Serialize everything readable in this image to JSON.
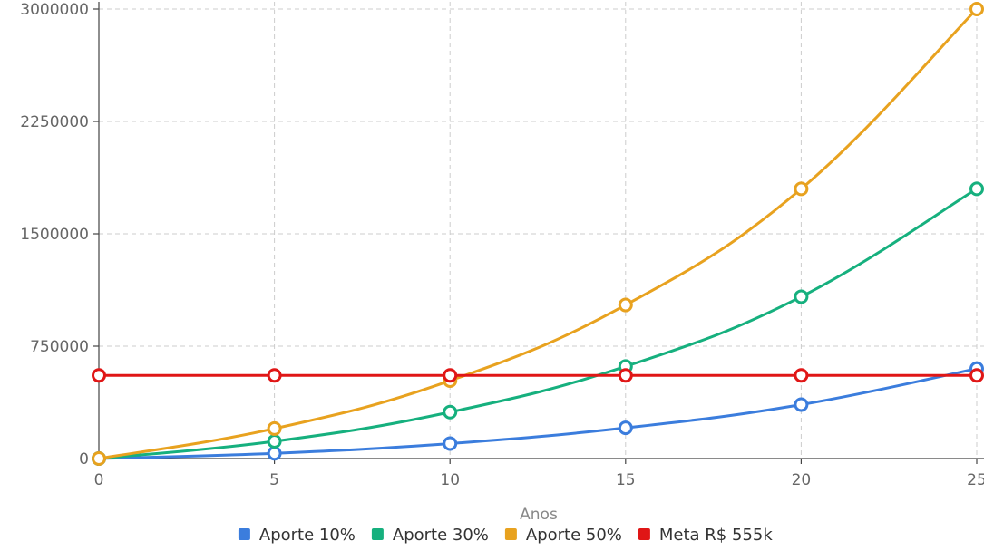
{
  "chart_data": {
    "type": "line",
    "title": "",
    "xlabel": "Anos",
    "ylabel": "",
    "x": [
      0,
      5,
      10,
      15,
      20,
      25
    ],
    "xticks": [
      "0",
      "5",
      "10",
      "15",
      "20",
      "25"
    ],
    "yticks": [
      "0",
      "750000",
      "1500000",
      "2250000",
      "3000000"
    ],
    "ylim": [
      0,
      3000000
    ],
    "xlim": [
      0,
      25
    ],
    "grid": true,
    "legend_position": "bottom",
    "series": [
      {
        "name": "Aporte 10%",
        "color": "#3b7ddd",
        "values": [
          0,
          35000,
          100000,
          205000,
          360000,
          600000
        ]
      },
      {
        "name": "Aporte 30%",
        "color": "#16b07e",
        "values": [
          0,
          115000,
          310000,
          615000,
          1080000,
          1800000
        ]
      },
      {
        "name": "Aporte 50%",
        "color": "#e8a21f",
        "values": [
          0,
          200000,
          520000,
          1025000,
          1800000,
          3000000
        ]
      },
      {
        "name": "Meta R$ 555k",
        "color": "#e01616",
        "values": [
          555000,
          555000,
          555000,
          555000,
          555000,
          555000
        ]
      }
    ]
  }
}
